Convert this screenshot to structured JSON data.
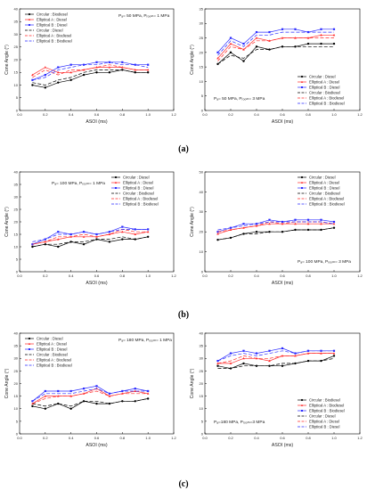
{
  "chart_data": [
    {
      "id": "a-left",
      "type": "line",
      "row_caption": "(a)",
      "xlabel": "ASOI (ms)",
      "ylabel": "Cone Angle (°)",
      "xlim": [
        0.0,
        1.2
      ],
      "ylim": [
        0,
        40
      ],
      "xticks": [
        "0.0",
        "0.2",
        "0.4",
        "0.6",
        "0.8",
        "1.0",
        "1.2"
      ],
      "yticks": [
        "0",
        "5",
        "10",
        "15",
        "20",
        "25",
        "30",
        "35",
        "40"
      ],
      "legend_pos": "top-left",
      "annotation": "Pₐ= 50 MPa, Pᵣₒₒₘ= 1 MPa",
      "annotation_pos": "top-right",
      "x": [
        0.1,
        0.2,
        0.3,
        0.4,
        0.5,
        0.6,
        0.7,
        0.8,
        0.9,
        1.0
      ],
      "series": [
        {
          "name": "Circular : Biodiesel",
          "color": "#000000",
          "dash": "solid",
          "marker": "circle",
          "values": [
            10,
            9,
            11,
            12,
            14,
            15,
            15,
            16,
            15,
            15
          ]
        },
        {
          "name": "Elliptical A : Diesel",
          "color": "#ff2a2a",
          "dash": "solid",
          "marker": "triangle",
          "values": [
            14,
            17,
            15,
            15,
            16,
            17,
            17,
            17,
            16,
            16
          ]
        },
        {
          "name": "Elliptical B : Diesel",
          "color": "#2a2aff",
          "dash": "solid",
          "marker": "square",
          "values": [
            12,
            14,
            17,
            18,
            18,
            19,
            19,
            19,
            18,
            18
          ]
        },
        {
          "name": "Circular : Diesel",
          "color": "#000000",
          "dash": "long",
          "marker": "none",
          "values": [
            11,
            10,
            12,
            13,
            15,
            16,
            16,
            16,
            15,
            15
          ]
        },
        {
          "name": "Elliptical A : Biodiesel",
          "color": "#ff2a2a",
          "dash": "long",
          "marker": "none",
          "values": [
            13,
            16,
            14,
            16,
            16,
            17,
            18,
            17,
            16,
            16
          ]
        },
        {
          "name": "Elliptical B : Biodiesel",
          "color": "#2a2aff",
          "dash": "long",
          "marker": "none",
          "values": [
            12,
            13,
            16,
            17,
            18,
            18,
            19,
            18,
            18,
            17
          ]
        }
      ]
    },
    {
      "id": "a-right",
      "type": "line",
      "row_caption": "(a)",
      "xlabel": "ASOI (ms)",
      "ylabel": "Cone Angle (°)",
      "xlim": [
        0.0,
        1.2
      ],
      "ylim": [
        0,
        35
      ],
      "xticks": [
        "0.0",
        "0.2",
        "0.4",
        "0.6",
        "0.8",
        "1.0",
        "1.2"
      ],
      "yticks": [
        "0",
        "5",
        "10",
        "15",
        "20",
        "25",
        "30",
        "35"
      ],
      "legend_pos": "bottom-right",
      "annotation": "Pₐ= 50 MPa, Pᵣₒₒₘ= 3 MPa",
      "annotation_pos": "bottom-left",
      "x": [
        0.1,
        0.2,
        0.3,
        0.4,
        0.5,
        0.6,
        0.7,
        0.8,
        0.9,
        1.0
      ],
      "series": [
        {
          "name": "Circular : Diesel",
          "color": "#000000",
          "dash": "solid",
          "marker": "circle",
          "values": [
            16,
            20,
            17,
            22,
            21,
            22,
            22,
            23,
            23,
            23
          ]
        },
        {
          "name": "Elliptical A : Diesel",
          "color": "#ff2a2a",
          "dash": "solid",
          "marker": "triangle",
          "values": [
            18,
            23,
            21,
            25,
            24,
            25,
            25,
            25,
            26,
            26
          ]
        },
        {
          "name": "Elliptical B : Diesel",
          "color": "#2a2aff",
          "dash": "solid",
          "marker": "square",
          "values": [
            20,
            25,
            23,
            27,
            27,
            28,
            28,
            27,
            28,
            28
          ]
        },
        {
          "name": "Circular : Biodiesel",
          "color": "#000000",
          "dash": "long",
          "marker": "none",
          "values": [
            16,
            19,
            18,
            21,
            21,
            22,
            22,
            22,
            22,
            22
          ]
        },
        {
          "name": "Elliptical A : Biodiesel",
          "color": "#ff2a2a",
          "dash": "long",
          "marker": "none",
          "values": [
            17,
            22,
            21,
            24,
            24,
            25,
            25,
            25,
            25,
            25
          ]
        },
        {
          "name": "Elliptical B : Biodiesel",
          "color": "#2a2aff",
          "dash": "long",
          "marker": "none",
          "values": [
            19,
            24,
            22,
            26,
            26,
            27,
            27,
            27,
            27,
            27
          ]
        }
      ]
    },
    {
      "id": "b-left",
      "type": "line",
      "row_caption": "(b)",
      "xlabel": "ASOI (ms)",
      "ylabel": "Cone Angle (°)",
      "xlim": [
        0.0,
        1.2
      ],
      "ylim": [
        0,
        40
      ],
      "xticks": [
        "0.0",
        "0.2",
        "0.4",
        "0.6",
        "0.8",
        "1.0",
        "1.2"
      ],
      "yticks": [
        "0",
        "5",
        "10",
        "15",
        "20",
        "25",
        "30",
        "35",
        "40"
      ],
      "legend_pos": "top-right",
      "annotation": "Pₐ= 100 MPa, Pᵣₒₒₘ= 1 MPa",
      "annotation_pos": "top-left",
      "x": [
        0.1,
        0.2,
        0.3,
        0.4,
        0.5,
        0.6,
        0.7,
        0.8,
        0.9,
        1.0
      ],
      "series": [
        {
          "name": "Circular : Diesel",
          "color": "#000000",
          "dash": "solid",
          "marker": "circle",
          "values": [
            10,
            11,
            10,
            12,
            11,
            13,
            12,
            13,
            13,
            14
          ]
        },
        {
          "name": "Elliptical A : Diesel",
          "color": "#ff2a2a",
          "dash": "solid",
          "marker": "triangle",
          "values": [
            11,
            12,
            13,
            14,
            14,
            14,
            15,
            16,
            15,
            16
          ]
        },
        {
          "name": "Elliptical B : Diesel",
          "color": "#2a2aff",
          "dash": "solid",
          "marker": "square",
          "values": [
            11,
            13,
            16,
            15,
            16,
            15,
            16,
            18,
            17,
            17
          ]
        },
        {
          "name": "Circular : Biodiesel",
          "color": "#000000",
          "dash": "long",
          "marker": "none",
          "values": [
            10,
            11,
            11,
            12,
            12,
            13,
            13,
            14,
            13,
            14
          ]
        },
        {
          "name": "Elliptical A : Biodiesel",
          "color": "#ff2a2a",
          "dash": "long",
          "marker": "none",
          "values": [
            11,
            12,
            14,
            14,
            15,
            14,
            15,
            17,
            16,
            16
          ]
        },
        {
          "name": "Elliptical B : Biodiesel",
          "color": "#2a2aff",
          "dash": "long",
          "marker": "none",
          "values": [
            12,
            13,
            15,
            15,
            16,
            15,
            16,
            17,
            17,
            17
          ]
        }
      ]
    },
    {
      "id": "b-right",
      "type": "line",
      "row_caption": "(b)",
      "xlabel": "ASOI (ms)",
      "ylabel": "Cone Angle (°)",
      "xlim": [
        0.0,
        1.2
      ],
      "ylim": [
        0,
        50
      ],
      "xticks": [
        "0.0",
        "0.2",
        "0.4",
        "0.6",
        "0.8",
        "1.0",
        "1.2"
      ],
      "yticks": [
        "0",
        "10",
        "20",
        "30",
        "40",
        "50"
      ],
      "legend_pos": "top-right",
      "annotation": "Pₐ= 100 MPa, Pᵣₒₒₘ= 3 MPa",
      "annotation_pos": "bottom-right",
      "x": [
        0.1,
        0.2,
        0.3,
        0.4,
        0.5,
        0.6,
        0.7,
        0.8,
        0.9,
        1.0
      ],
      "series": [
        {
          "name": "Circular : Diesel",
          "color": "#000000",
          "dash": "solid",
          "marker": "circle",
          "values": [
            16,
            17,
            19,
            20,
            20,
            20,
            21,
            21,
            21,
            22
          ]
        },
        {
          "name": "Elliptical A : Diesel",
          "color": "#ff2a2a",
          "dash": "solid",
          "marker": "triangle",
          "values": [
            19,
            21,
            22,
            23,
            24,
            24,
            24,
            24,
            24,
            24
          ]
        },
        {
          "name": "Elliptical B : Diesel",
          "color": "#2a2aff",
          "dash": "solid",
          "marker": "square",
          "values": [
            20,
            22,
            24,
            24,
            26,
            25,
            26,
            26,
            26,
            25
          ]
        },
        {
          "name": "Circular : Biodiesel",
          "color": "#000000",
          "dash": "long",
          "marker": "none",
          "values": [
            16,
            17,
            19,
            19,
            20,
            20,
            21,
            21,
            21,
            22
          ]
        },
        {
          "name": "Elliptical A : Biodiesel",
          "color": "#ff2a2a",
          "dash": "long",
          "marker": "none",
          "values": [
            20,
            21,
            22,
            23,
            25,
            24,
            25,
            25,
            25,
            24
          ]
        },
        {
          "name": "Elliptical B : Biodiesel",
          "color": "#2a2aff",
          "dash": "long",
          "marker": "none",
          "values": [
            21,
            22,
            23,
            24,
            25,
            25,
            25,
            25,
            25,
            24
          ]
        }
      ]
    },
    {
      "id": "c-left",
      "type": "line",
      "row_caption": "(c)",
      "xlabel": "ASOI (ms)",
      "ylabel": "Cone Angle (°)",
      "xlim": [
        0.0,
        1.2
      ],
      "ylim": [
        0,
        40
      ],
      "xticks": [
        "0.0",
        "0.2",
        "0.4",
        "0.6",
        "0.8",
        "1.0",
        "1.2"
      ],
      "yticks": [
        "0",
        "5",
        "10",
        "15",
        "20",
        "25",
        "30",
        "35",
        "40"
      ],
      "legend_pos": "top-left",
      "annotation": "Pₐ= 180 MPa, Pᵣₒₒₘ= 1 MPa",
      "annotation_pos": "top-right",
      "x": [
        0.1,
        0.2,
        0.3,
        0.4,
        0.5,
        0.6,
        0.7,
        0.8,
        0.9,
        1.0
      ],
      "series": [
        {
          "name": "Circular : Diesel",
          "color": "#000000",
          "dash": "solid",
          "marker": "circle",
          "values": [
            11,
            10,
            12,
            10,
            13,
            12,
            12,
            13,
            13,
            14
          ]
        },
        {
          "name": "Elliptical A : Diesel",
          "color": "#ff2a2a",
          "dash": "solid",
          "marker": "triangle",
          "values": [
            12,
            15,
            15,
            15,
            16,
            18,
            15,
            16,
            17,
            16
          ]
        },
        {
          "name": "Elliptical B : Diesel",
          "color": "#2a2aff",
          "dash": "solid",
          "marker": "square",
          "values": [
            13,
            17,
            17,
            17,
            18,
            19,
            16,
            17,
            18,
            17
          ]
        },
        {
          "name": "Circular : Biodiesel",
          "color": "#000000",
          "dash": "long",
          "marker": "none",
          "values": [
            12,
            11,
            12,
            11,
            13,
            13,
            12,
            13,
            13,
            14
          ]
        },
        {
          "name": "Elliptical A : Biodiesel",
          "color": "#ff2a2a",
          "dash": "long",
          "marker": "none",
          "values": [
            12,
            14,
            15,
            15,
            16,
            17,
            15,
            16,
            16,
            16
          ]
        },
        {
          "name": "Elliptical B : Biodiesel",
          "color": "#2a2aff",
          "dash": "long",
          "marker": "none",
          "values": [
            13,
            16,
            16,
            16,
            17,
            18,
            16,
            17,
            17,
            17
          ]
        }
      ]
    },
    {
      "id": "c-right",
      "type": "line",
      "row_caption": "(c)",
      "xlabel": "ASOI (ms)",
      "ylabel": "Cone Angle (°)",
      "xlim": [
        0.0,
        1.2
      ],
      "ylim": [
        0,
        40
      ],
      "xticks": [
        "0.0",
        "0.2",
        "0.4",
        "0.6",
        "0.8",
        "1.0",
        "1.2"
      ],
      "yticks": [
        "0",
        "5",
        "10",
        "15",
        "20",
        "25",
        "30",
        "35",
        "40"
      ],
      "legend_pos": "bottom-right",
      "annotation": "Pₐ=180 MPa, Pᵣₒₒₘ=3 MPa",
      "annotation_pos": "bottom-left",
      "x": [
        0.1,
        0.2,
        0.3,
        0.4,
        0.5,
        0.6,
        0.7,
        0.8,
        0.9,
        1.0
      ],
      "series": [
        {
          "name": "Circular : Biodiesel",
          "color": "#000000",
          "dash": "solid",
          "marker": "circle",
          "values": [
            27,
            26,
            28,
            27,
            27,
            27,
            28,
            29,
            29,
            31
          ]
        },
        {
          "name": "Elliptical A : Biodiesel",
          "color": "#ff2a2a",
          "dash": "solid",
          "marker": "triangle",
          "values": [
            28,
            28,
            30,
            30,
            29,
            31,
            31,
            32,
            32,
            32
          ]
        },
        {
          "name": "Elliptical B : Biodiesel",
          "color": "#2a2aff",
          "dash": "solid",
          "marker": "square",
          "values": [
            29,
            32,
            33,
            32,
            33,
            34,
            32,
            33,
            33,
            33
          ]
        },
        {
          "name": "Circular : Diesel",
          "color": "#000000",
          "dash": "long",
          "marker": "none",
          "values": [
            26,
            26,
            27,
            27,
            27,
            28,
            28,
            29,
            29,
            30
          ]
        },
        {
          "name": "Elliptical A : Diesel",
          "color": "#ff2a2a",
          "dash": "long",
          "marker": "none",
          "values": [
            28,
            29,
            31,
            30,
            30,
            31,
            31,
            32,
            32,
            32
          ]
        },
        {
          "name": "Elliptical B : Diesel",
          "color": "#2a2aff",
          "dash": "long",
          "marker": "none",
          "values": [
            29,
            31,
            32,
            31,
            32,
            33,
            32,
            33,
            33,
            33
          ]
        }
      ]
    }
  ]
}
